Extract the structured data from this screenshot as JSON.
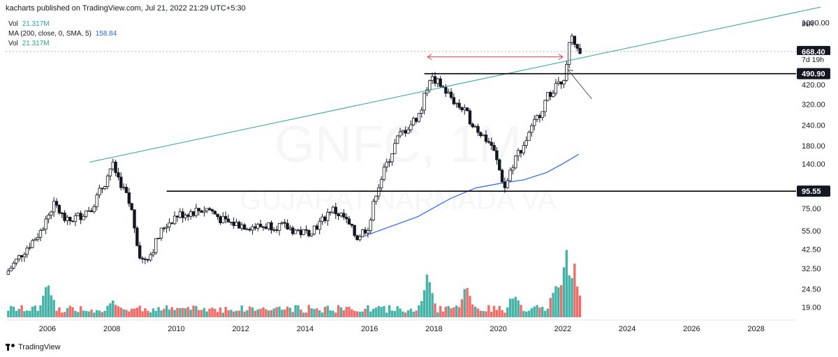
{
  "header": {
    "published_line": "kacharts published on TradingView.com, Jul 21, 2022 21:29 UTC+5:30"
  },
  "legend": [
    {
      "label": "Vol",
      "value": "21.317M",
      "color": "#26a69a"
    },
    {
      "label": "MA (200, close, 0, SMA, 5)",
      "value": "158.84",
      "color": "#2962ff"
    },
    {
      "label": "Vol",
      "value": "21.317M",
      "color": "#26a69a"
    }
  ],
  "footer": {
    "brand": "TradingView"
  },
  "watermark": {
    "symbol": "GNFC, 1M",
    "name": "GUJARAT NARMADA VA"
  },
  "colors": {
    "up": "#26a69a",
    "down": "#ef5350",
    "candle": "#131722",
    "ma": "#2962ff",
    "trendline": "#26a69a",
    "range_arrow": "#f23645",
    "hline": "#000000"
  },
  "chart_data": {
    "type": "candlestick",
    "symbol": "GNFC",
    "interval": "1M",
    "currency": "INR",
    "y_scale": "log",
    "ylim": [
      16.5,
      1150
    ],
    "xlim": [
      2004.7,
      2029.2
    ],
    "x_ticks": [
      "2006",
      "2008",
      "2010",
      "2012",
      "2014",
      "2016",
      "2018",
      "2020",
      "2022",
      "2024",
      "2026",
      "2028"
    ],
    "x_tick_values": [
      2006,
      2008,
      2010,
      2012,
      2014,
      2016,
      2018,
      2020,
      2022,
      2024,
      2026,
      2028
    ],
    "y_ticks": [
      "1000.00",
      "420.00",
      "320.00",
      "240.00",
      "180.00",
      "140.00",
      "75.00",
      "55.00",
      "42.50",
      "32.50",
      "24.50",
      "19.00"
    ],
    "y_tick_values": [
      1000,
      420,
      320,
      240,
      180,
      140,
      75,
      55,
      42.5,
      32.5,
      24.5,
      19
    ],
    "price_labels": [
      {
        "text": "INR",
        "role": "currency",
        "y": null
      },
      {
        "text": "668.40",
        "role": "last-price",
        "y": 668.4
      },
      {
        "text": "7d 19h",
        "role": "countdown",
        "y": 668.4
      },
      {
        "text": "490.90",
        "role": "resistance",
        "y": 490.9
      },
      {
        "text": "95.55",
        "role": "support",
        "y": 95.55
      }
    ],
    "close_anchors": [
      [
        2004.7,
        30
      ],
      [
        2005.2,
        40
      ],
      [
        2005.8,
        55
      ],
      [
        2006.2,
        80
      ],
      [
        2006.6,
        62
      ],
      [
        2007.0,
        68
      ],
      [
        2007.4,
        78
      ],
      [
        2007.8,
        110
      ],
      [
        2008.0,
        140
      ],
      [
        2008.3,
        105
      ],
      [
        2008.6,
        75
      ],
      [
        2008.9,
        36
      ],
      [
        2009.2,
        40
      ],
      [
        2009.6,
        58
      ],
      [
        2010.0,
        68
      ],
      [
        2010.5,
        72
      ],
      [
        2011.0,
        75
      ],
      [
        2011.5,
        62
      ],
      [
        2012.0,
        60
      ],
      [
        2012.5,
        58
      ],
      [
        2013.0,
        60
      ],
      [
        2013.5,
        57
      ],
      [
        2014.0,
        53
      ],
      [
        2014.5,
        62
      ],
      [
        2014.8,
        75
      ],
      [
        2015.2,
        66
      ],
      [
        2015.6,
        50
      ],
      [
        2016.0,
        60
      ],
      [
        2016.2,
        95
      ],
      [
        2016.6,
        150
      ],
      [
        2016.9,
        205
      ],
      [
        2017.3,
        245
      ],
      [
        2017.6,
        290
      ],
      [
        2017.85,
        470
      ],
      [
        2018.2,
        420
      ],
      [
        2018.6,
        340
      ],
      [
        2019.0,
        280
      ],
      [
        2019.4,
        220
      ],
      [
        2019.8,
        180
      ],
      [
        2020.2,
        100
      ],
      [
        2020.5,
        150
      ],
      [
        2020.9,
        200
      ],
      [
        2021.3,
        290
      ],
      [
        2021.6,
        380
      ],
      [
        2021.9,
        440
      ],
      [
        2022.1,
        500
      ],
      [
        2022.25,
        850
      ],
      [
        2022.4,
        720
      ],
      [
        2022.55,
        668.4
      ]
    ],
    "ma200": {
      "name": "MA (200, close, 0, SMA, 5)",
      "last": 158.84,
      "points": [
        [
          2015.7,
          50
        ],
        [
          2016.5,
          57
        ],
        [
          2017.5,
          67
        ],
        [
          2018.5,
          86
        ],
        [
          2019.3,
          100
        ],
        [
          2020.0,
          106
        ],
        [
          2020.8,
          112
        ],
        [
          2021.5,
          124
        ],
        [
          2022.0,
          140
        ],
        [
          2022.5,
          160
        ]
      ]
    },
    "volume": {
      "unit": "M",
      "last": 21.317,
      "peaks": [
        [
          2006.0,
          0.55
        ],
        [
          2008.0,
          0.25
        ],
        [
          2017.8,
          0.6
        ],
        [
          2019.0,
          0.45
        ],
        [
          2020.5,
          0.4
        ],
        [
          2021.8,
          0.55
        ],
        [
          2022.1,
          1.0
        ],
        [
          2022.35,
          0.78
        ],
        [
          2022.5,
          0.3
        ]
      ]
    },
    "annotations": [
      {
        "type": "trendline",
        "from": [
          2007.3,
          143
        ],
        "to": [
          2030.0,
          1240
        ]
      },
      {
        "type": "horizontal-line",
        "y": 490.9,
        "x_start": 2017.7
      },
      {
        "type": "horizontal-line",
        "y": 95.55,
        "x_start": 2009.7
      },
      {
        "type": "range-arrow",
        "from": [
          2017.8,
          620
        ],
        "to": [
          2022.0,
          620
        ]
      },
      {
        "type": "arrow",
        "from": [
          2022.15,
          520
        ],
        "to": [
          2022.9,
          345
        ]
      }
    ]
  }
}
